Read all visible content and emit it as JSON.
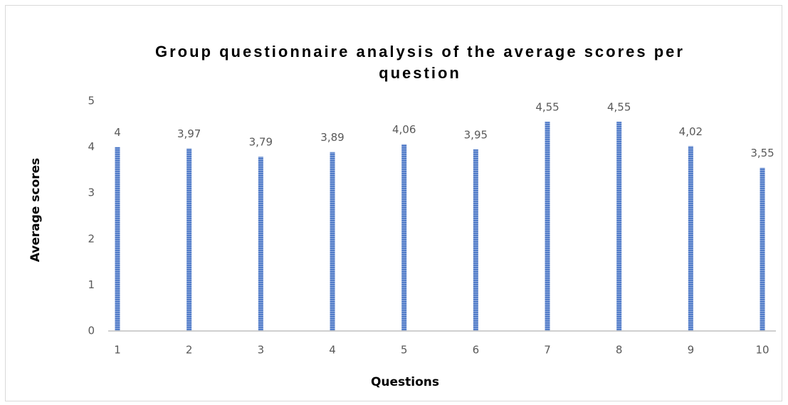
{
  "chart_data": {
    "type": "bar",
    "title": "Group questionnaire analysis of the average scores per question",
    "x_label": "Questions",
    "y_label": "Average scores",
    "categories": [
      "1",
      "2",
      "3",
      "4",
      "5",
      "6",
      "7",
      "8",
      "9",
      "10"
    ],
    "values": [
      4,
      3.97,
      3.79,
      3.89,
      4.06,
      3.95,
      4.55,
      4.55,
      4.02,
      3.55
    ],
    "value_labels": [
      "4",
      "3,97",
      "3,79",
      "3,89",
      "4,06",
      "3,95",
      "4,55",
      "4,55",
      "4,02",
      "3,55"
    ],
    "color": "#4472c4",
    "ylim": [
      0,
      5
    ],
    "yticks": [
      0,
      1,
      2,
      3,
      4,
      5
    ],
    "grid": false
  }
}
